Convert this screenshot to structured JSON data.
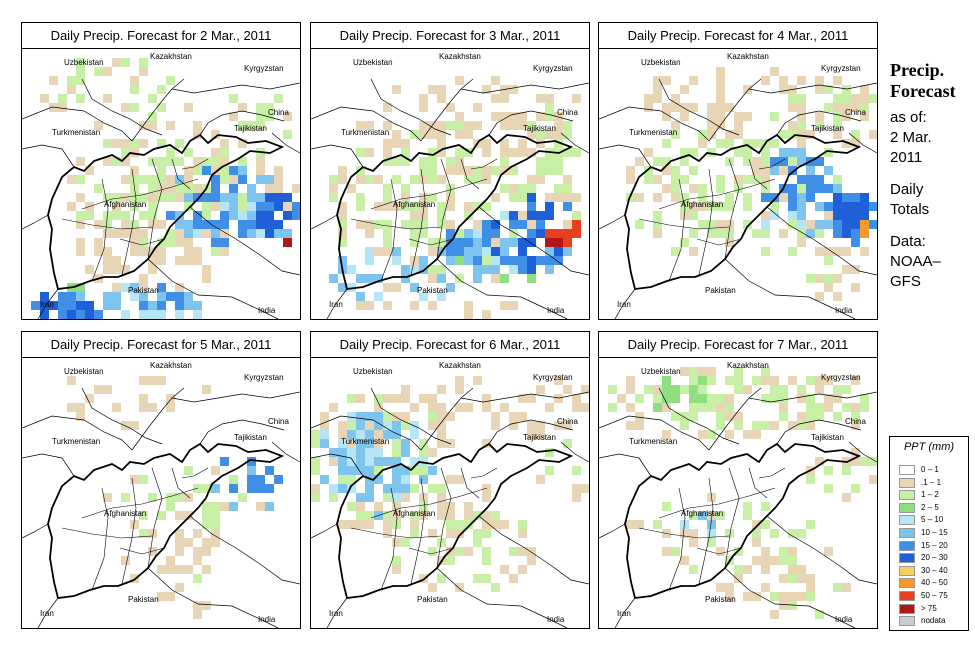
{
  "panels": [
    {
      "title": "Daily Precip. Forecast for  2 Mar., 2011",
      "day": 2
    },
    {
      "title": "Daily Precip. Forecast for  3 Mar., 2011",
      "day": 3
    },
    {
      "title": "Daily Precip. Forecast for  4 Mar., 2011",
      "day": 4
    },
    {
      "title": "Daily Precip. Forecast for  5 Mar., 2011",
      "day": 5
    },
    {
      "title": "Daily Precip. Forecast for  6 Mar., 2011",
      "day": 6
    },
    {
      "title": "Daily Precip. Forecast for  7 Mar., 2011",
      "day": 7
    }
  ],
  "map_labels": {
    "uzbekistan": "Uzbekistan",
    "kazakhstan": "Kazakhstan",
    "kyrgyzstan": "Kyrgyzstan",
    "turkmenistan": "Turkmenistan",
    "tajikistan": "Tajikistan",
    "china": "China",
    "afghanistan": "Afghanistan",
    "pakistan": "Pakistan",
    "iran": "Iran",
    "india": "India"
  },
  "side": {
    "title_line1": "Precip.",
    "title_line2": "Forecast",
    "asof1": "as of:",
    "asof2": "2 Mar.",
    "asof3": "2011",
    "daily1": "Daily",
    "daily2": "Totals",
    "data1": "Data:",
    "data2": "NOAA–",
    "data3": "GFS"
  },
  "legend": {
    "title": "PPT (mm)",
    "items": [
      {
        "label": "0 – 1",
        "color": "#ffffff"
      },
      {
        "label": ".1 – 1",
        "color": "#e8d5b5"
      },
      {
        "label": "1 – 2",
        "color": "#c7efa6"
      },
      {
        "label": "2 – 5",
        "color": "#8fde80"
      },
      {
        "label": "5 – 10",
        "color": "#b6e6f5"
      },
      {
        "label": "10 – 15",
        "color": "#7fc3ef"
      },
      {
        "label": "15 – 20",
        "color": "#3f8fe6"
      },
      {
        "label": "20 – 30",
        "color": "#1f5fd8"
      },
      {
        "label": "30 – 40",
        "color": "#f4d060"
      },
      {
        "label": "40 – 50",
        "color": "#f59a2a"
      },
      {
        "label": "50 – 75",
        "color": "#e8401e"
      },
      {
        "label": "> 75",
        "color": "#b01818"
      },
      {
        "label": "nodata",
        "color": "#cccccc"
      }
    ]
  }
}
